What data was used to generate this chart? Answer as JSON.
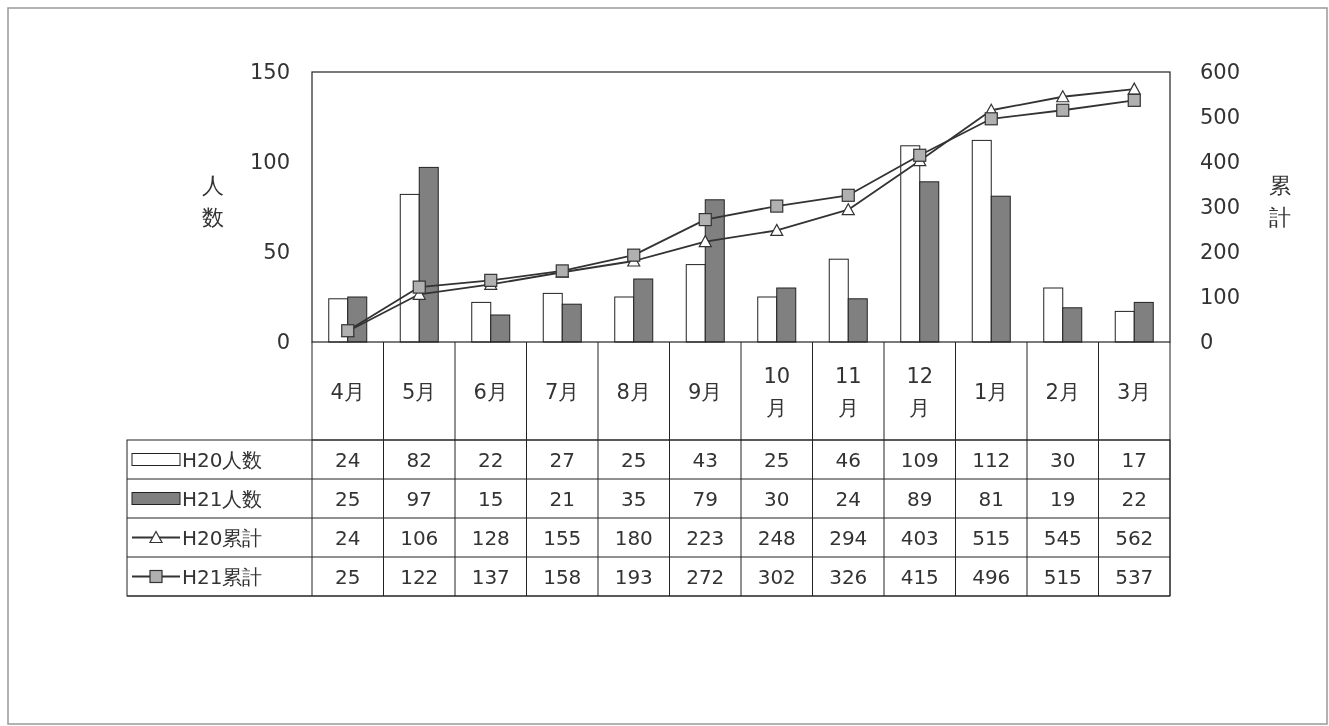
{
  "chart_data": {
    "type": "bar",
    "ylabel": "人数",
    "y2label": "累計",
    "categories": [
      "4月",
      "5月",
      "6月",
      "7月",
      "8月",
      "9月",
      "10月",
      "11月",
      "12月",
      "1月",
      "2月",
      "3月"
    ],
    "series": [
      {
        "name": "H20人数",
        "color": "#ffffff",
        "values": [
          24,
          82,
          22,
          27,
          25,
          43,
          25,
          46,
          109,
          112,
          30,
          17
        ]
      },
      {
        "name": "H21人数",
        "color": "#808080",
        "values": [
          25,
          97,
          15,
          21,
          35,
          79,
          30,
          24,
          89,
          81,
          19,
          22
        ]
      },
      {
        "name": "H20累計",
        "type": "line",
        "axis": "y2",
        "color": "#333333",
        "marker": "triangle",
        "values": [
          24,
          106,
          128,
          155,
          180,
          223,
          248,
          294,
          403,
          515,
          545,
          562
        ]
      },
      {
        "name": "H21累計",
        "type": "line",
        "axis": "y2",
        "color": "#333333",
        "marker": "square",
        "values": [
          25,
          122,
          137,
          158,
          193,
          272,
          302,
          326,
          415,
          496,
          515,
          537
        ]
      }
    ],
    "ylim": [
      0,
      150
    ],
    "yticks": [
      0,
      50,
      100,
      150
    ],
    "y2lim": [
      0,
      600
    ],
    "y2ticks": [
      0,
      100,
      200,
      300,
      400,
      500,
      600
    ],
    "data_labels": true,
    "legend": "bottom"
  }
}
